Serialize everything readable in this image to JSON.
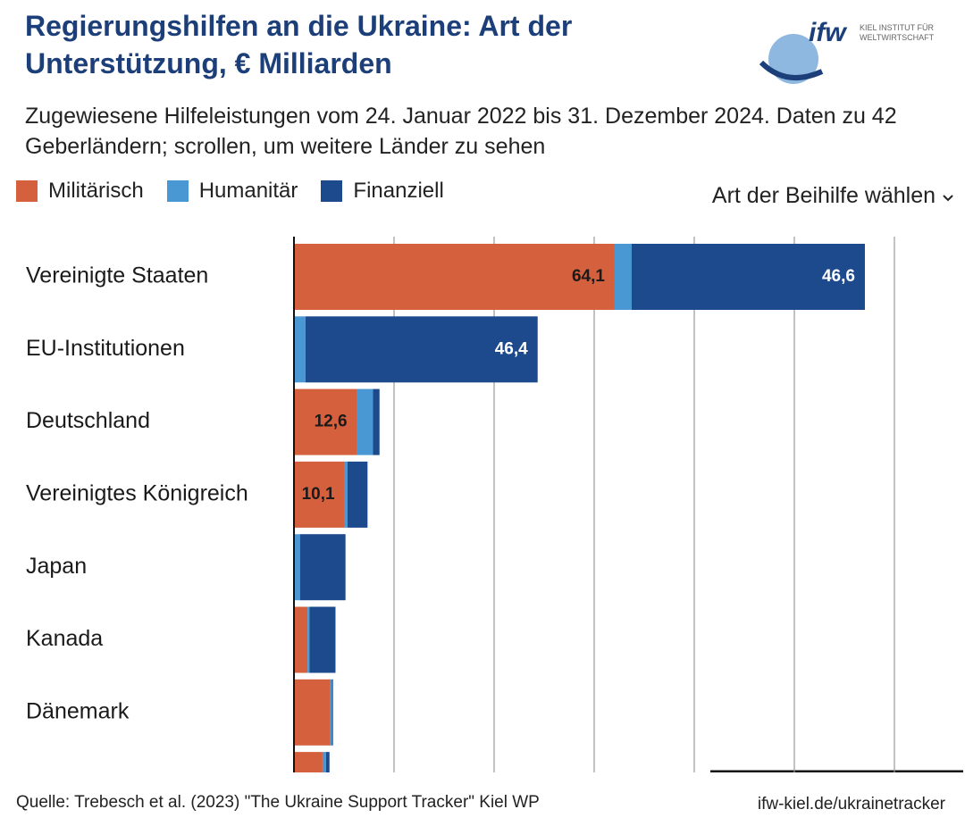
{
  "chart_data": {
    "type": "stacked-barh",
    "title": "Regierungshilfen an die Ukraine: Art der Unterstützung, € Milliarden",
    "subtitle": "Zugewiesene Hilfeleistungen vom 24. Januar 2022 bis 31. Dezember 2024. Daten zu 42 Geberländern; scrollen, um weitere Länder zu sehen",
    "dropdown": "Art der Beihilfe wählen",
    "source": "Quelle: Trebesch et al. (2023) \"The Ukraine Support Tracker\" Kiel WP",
    "link": "ifw-kiel.de/ukrainetracker",
    "logo": {
      "mark": "ifw",
      "line1": "KIEL INSTITUT FÜR",
      "line2": "WELTWIRTSCHAFT"
    },
    "categories": [
      "Vereinigte Staaten",
      "EU-Institutionen",
      "Deutschland",
      "Vereinigtes Königreich",
      "Japan",
      "Kanada",
      "Dänemark",
      null
    ],
    "series": [
      {
        "name": "Militärisch",
        "color": "#d4603d",
        "label_color": "#1a1a1a",
        "values": [
          64.1,
          0,
          12.6,
          10.1,
          0,
          2.7,
          7.3,
          5.7
        ],
        "value_labels": [
          "64,1",
          null,
          "12,6",
          "10,1",
          null,
          null,
          null,
          null
        ]
      },
      {
        "name": "Humanitär",
        "color": "#4a98d3",
        "values": [
          3.4,
          2.3,
          3.2,
          0.6,
          1.2,
          0.4,
          0.3,
          0.7
        ]
      },
      {
        "name": "Finanziell",
        "color": "#1c4a8c",
        "label_color": "#ffffff",
        "values": [
          46.6,
          46.4,
          1.3,
          4.0,
          9.1,
          5.2,
          0.2,
          0.7
        ],
        "value_labels": [
          "46,6",
          "46,4",
          null,
          null,
          null,
          null,
          null,
          null
        ]
      }
    ],
    "xlim": [
      0,
      120
    ],
    "xticks": [
      0,
      20,
      40,
      60,
      80,
      100,
      120
    ],
    "grid": true
  }
}
